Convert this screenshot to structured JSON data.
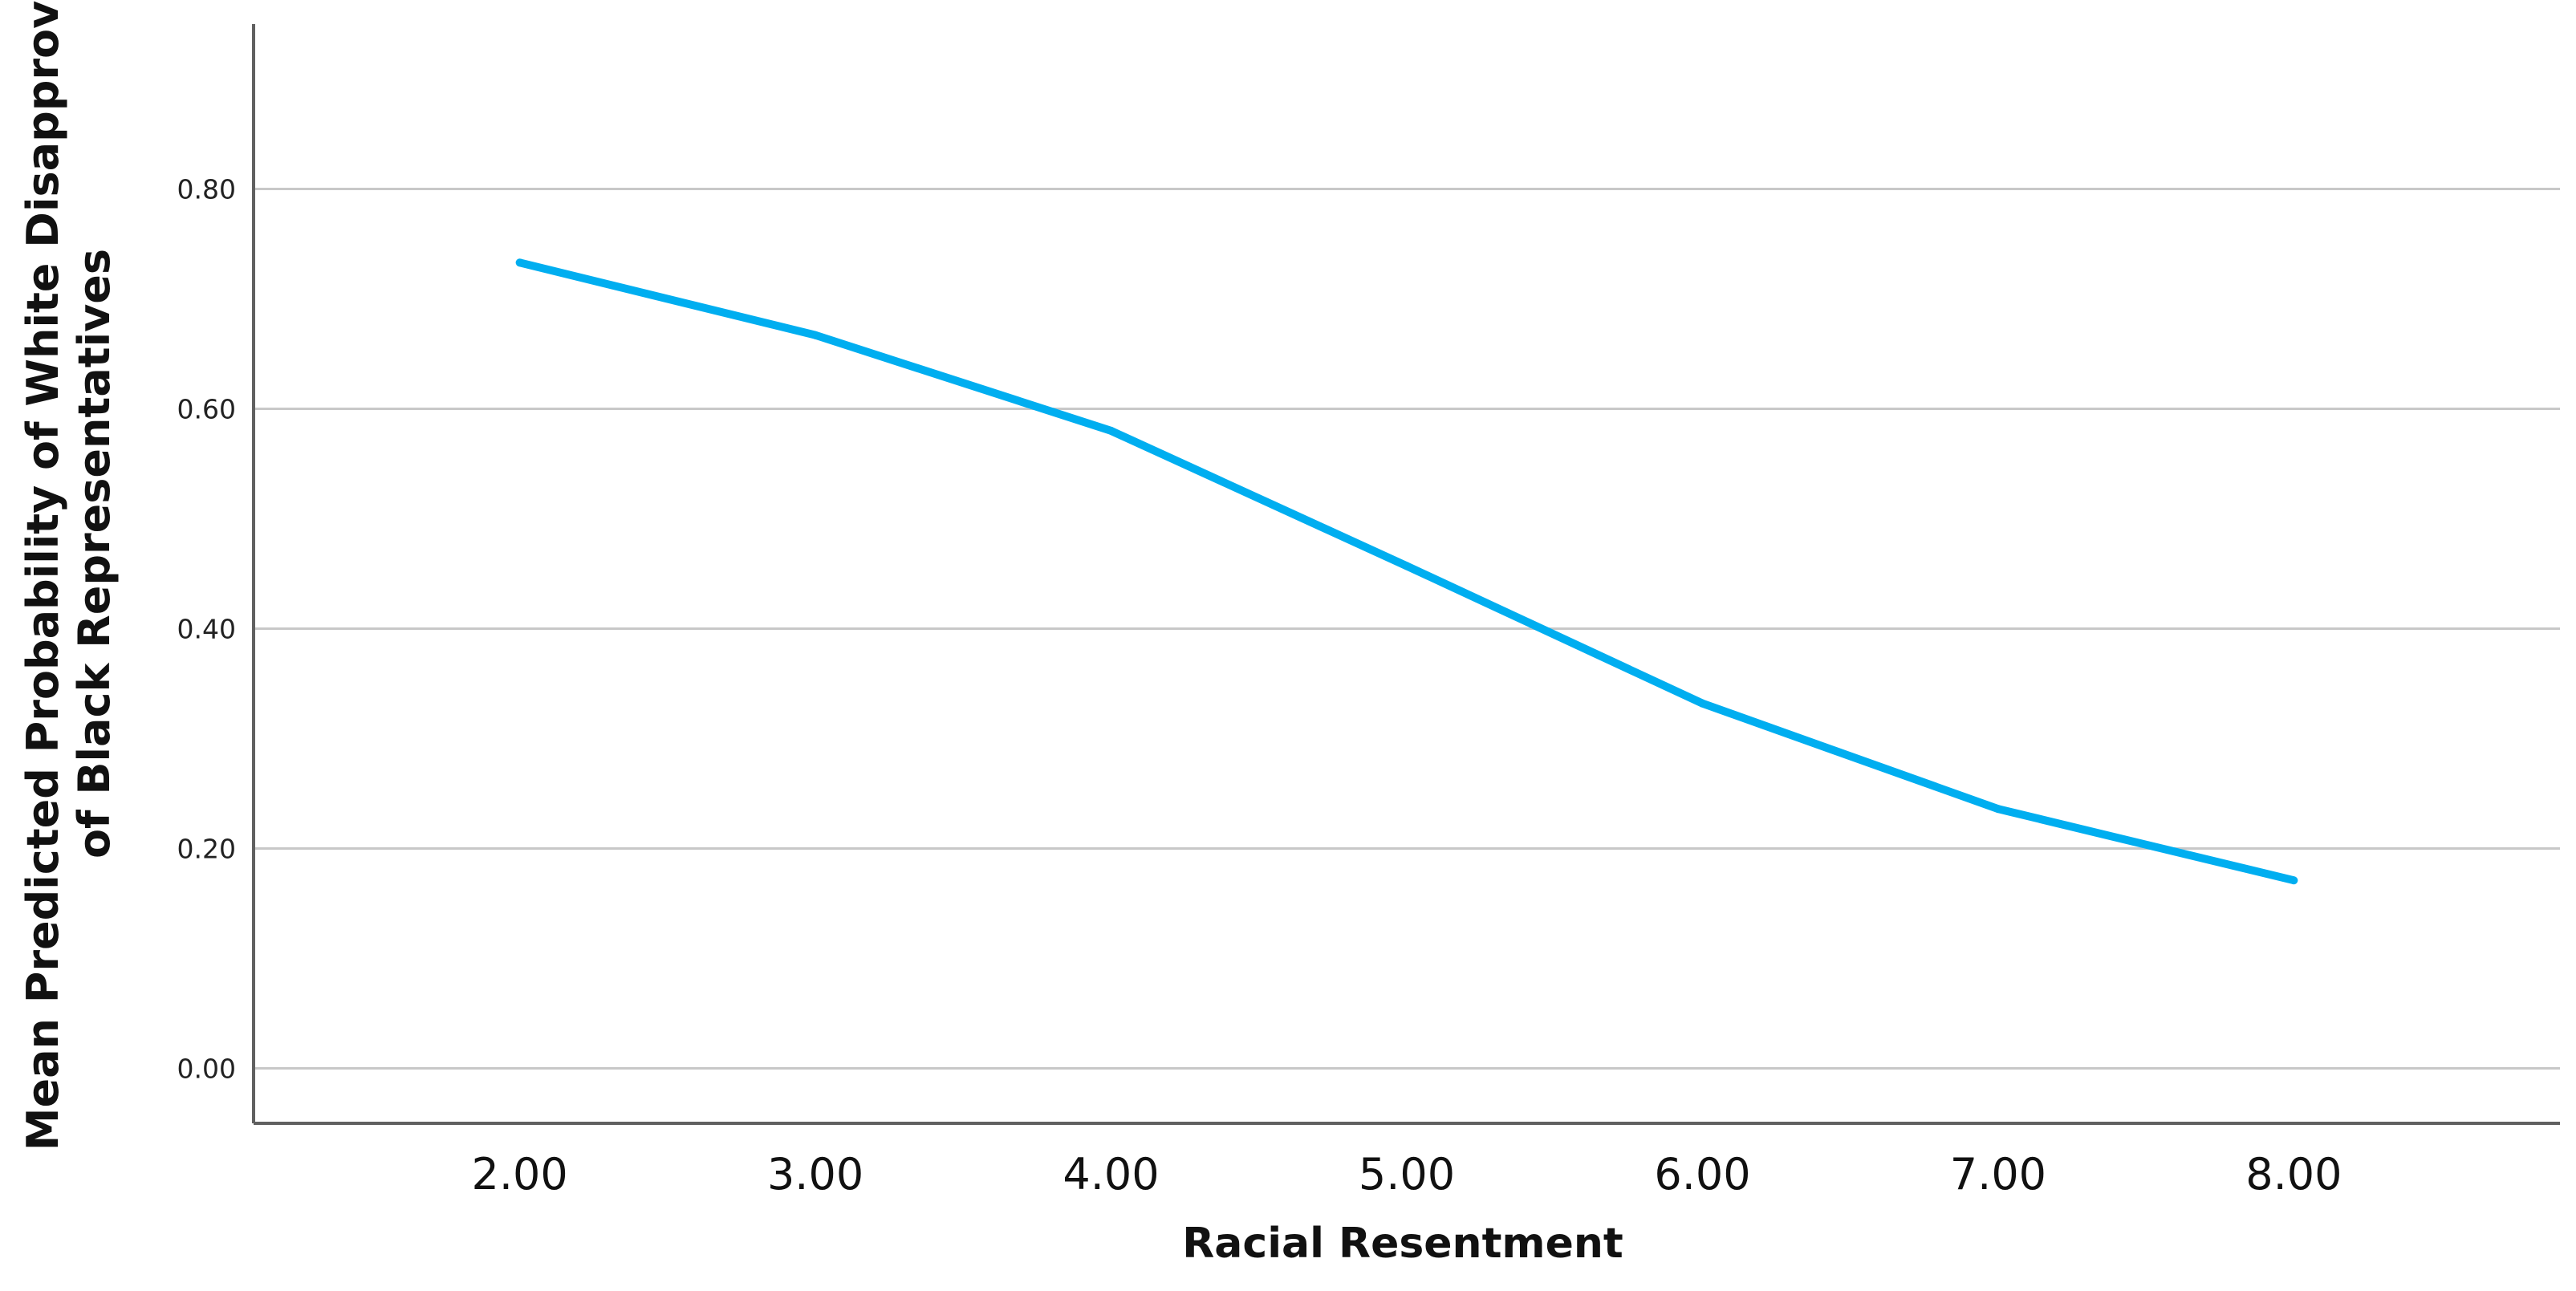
{
  "chart_data": {
    "type": "line",
    "title": "",
    "xlabel": "Racial Resentment",
    "ylabel_lines": [
      "Mean Predicted Probability of White Disapproval",
      "of Black Representatives"
    ],
    "x": [
      2,
      3,
      4,
      5,
      6,
      7,
      8
    ],
    "x_tick_labels": [
      "2.00",
      "3.00",
      "4.00",
      "5.00",
      "6.00",
      "7.00",
      "8.00"
    ],
    "y_ticks": [
      0,
      0.2,
      0.4,
      0.6,
      0.8
    ],
    "y_tick_labels": [
      "0.00",
      "0.20",
      "0.40",
      "0.60",
      "0.80"
    ],
    "xlim": [
      1.1,
      8.9
    ],
    "ylim": [
      -0.05,
      0.95
    ],
    "series": [
      {
        "values": [
          0.733,
          0.667,
          0.58,
          0.457,
          0.332,
          0.236,
          0.171
        ]
      }
    ],
    "grid": "horizontal",
    "colors": {
      "line": "#00aef0",
      "grid": "#c8c8c8",
      "axis": "#606060"
    }
  }
}
